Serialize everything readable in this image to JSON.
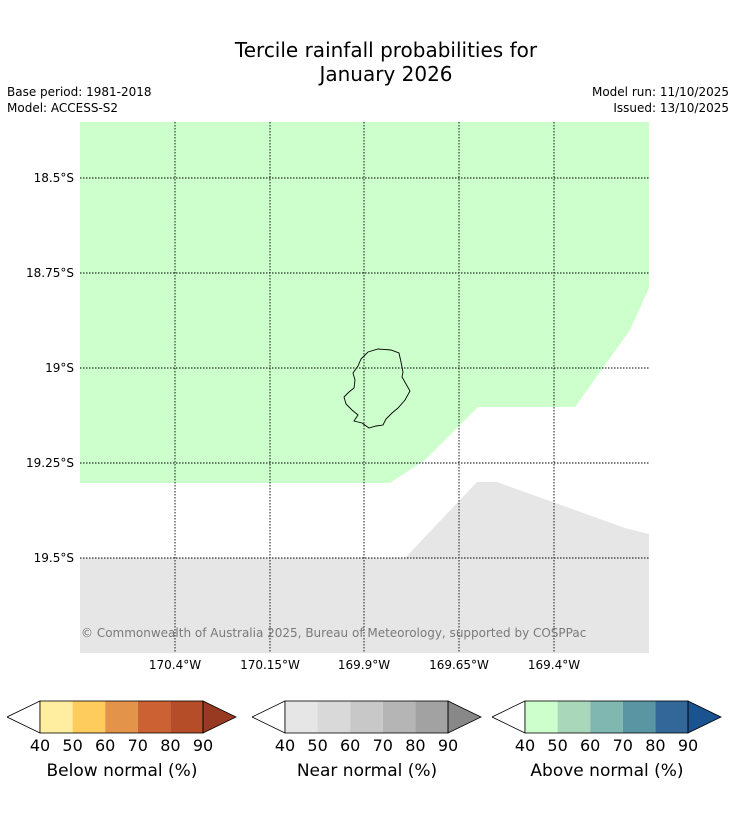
{
  "header": {
    "title_line1": "Tercile rainfall probabilities for",
    "title_line2": "January 2026",
    "base_period": "Base period: 1981-2018",
    "model": "Model: ACCESS-S2",
    "model_run": "Model run: 11/10/2025",
    "issued": "Issued: 13/10/2025"
  },
  "map": {
    "lat_labels": [
      "18.5°S",
      "18.75°S",
      "19°S",
      "19.25°S",
      "19.5°S"
    ],
    "lon_labels": [
      "170.4°W",
      "170.15°W",
      "169.9°W",
      "169.65°W",
      "169.4°W"
    ],
    "copyright": "© Commonwealth of Australia 2025, Bureau of Meteorology, supported by COSPPac",
    "colors": {
      "above_normal_40_50": "#ccffcc",
      "near_normal_40_50": "#e6e6e6",
      "land_outline": "#000000"
    }
  },
  "colorbars": [
    {
      "label": "Below normal (%)",
      "ticks": [
        "40",
        "50",
        "60",
        "70",
        "80",
        "90"
      ],
      "colors": [
        "#ffeda0",
        "#fecc5c",
        "#e3944a",
        "#cc6233",
        "#b54d28",
        "#983a22"
      ]
    },
    {
      "label": "Near normal (%)",
      "ticks": [
        "40",
        "50",
        "60",
        "70",
        "80",
        "90"
      ],
      "colors": [
        "#e6e6e6",
        "#d9d9d9",
        "#c8c8c8",
        "#b5b5b5",
        "#a2a2a2",
        "#888888"
      ]
    },
    {
      "label": "Above normal (%)",
      "ticks": [
        "40",
        "50",
        "60",
        "70",
        "80",
        "90"
      ],
      "colors": [
        "#ccffcc",
        "#a8d8b9",
        "#80b8b1",
        "#5995a2",
        "#336699",
        "#1b5390"
      ]
    }
  ]
}
